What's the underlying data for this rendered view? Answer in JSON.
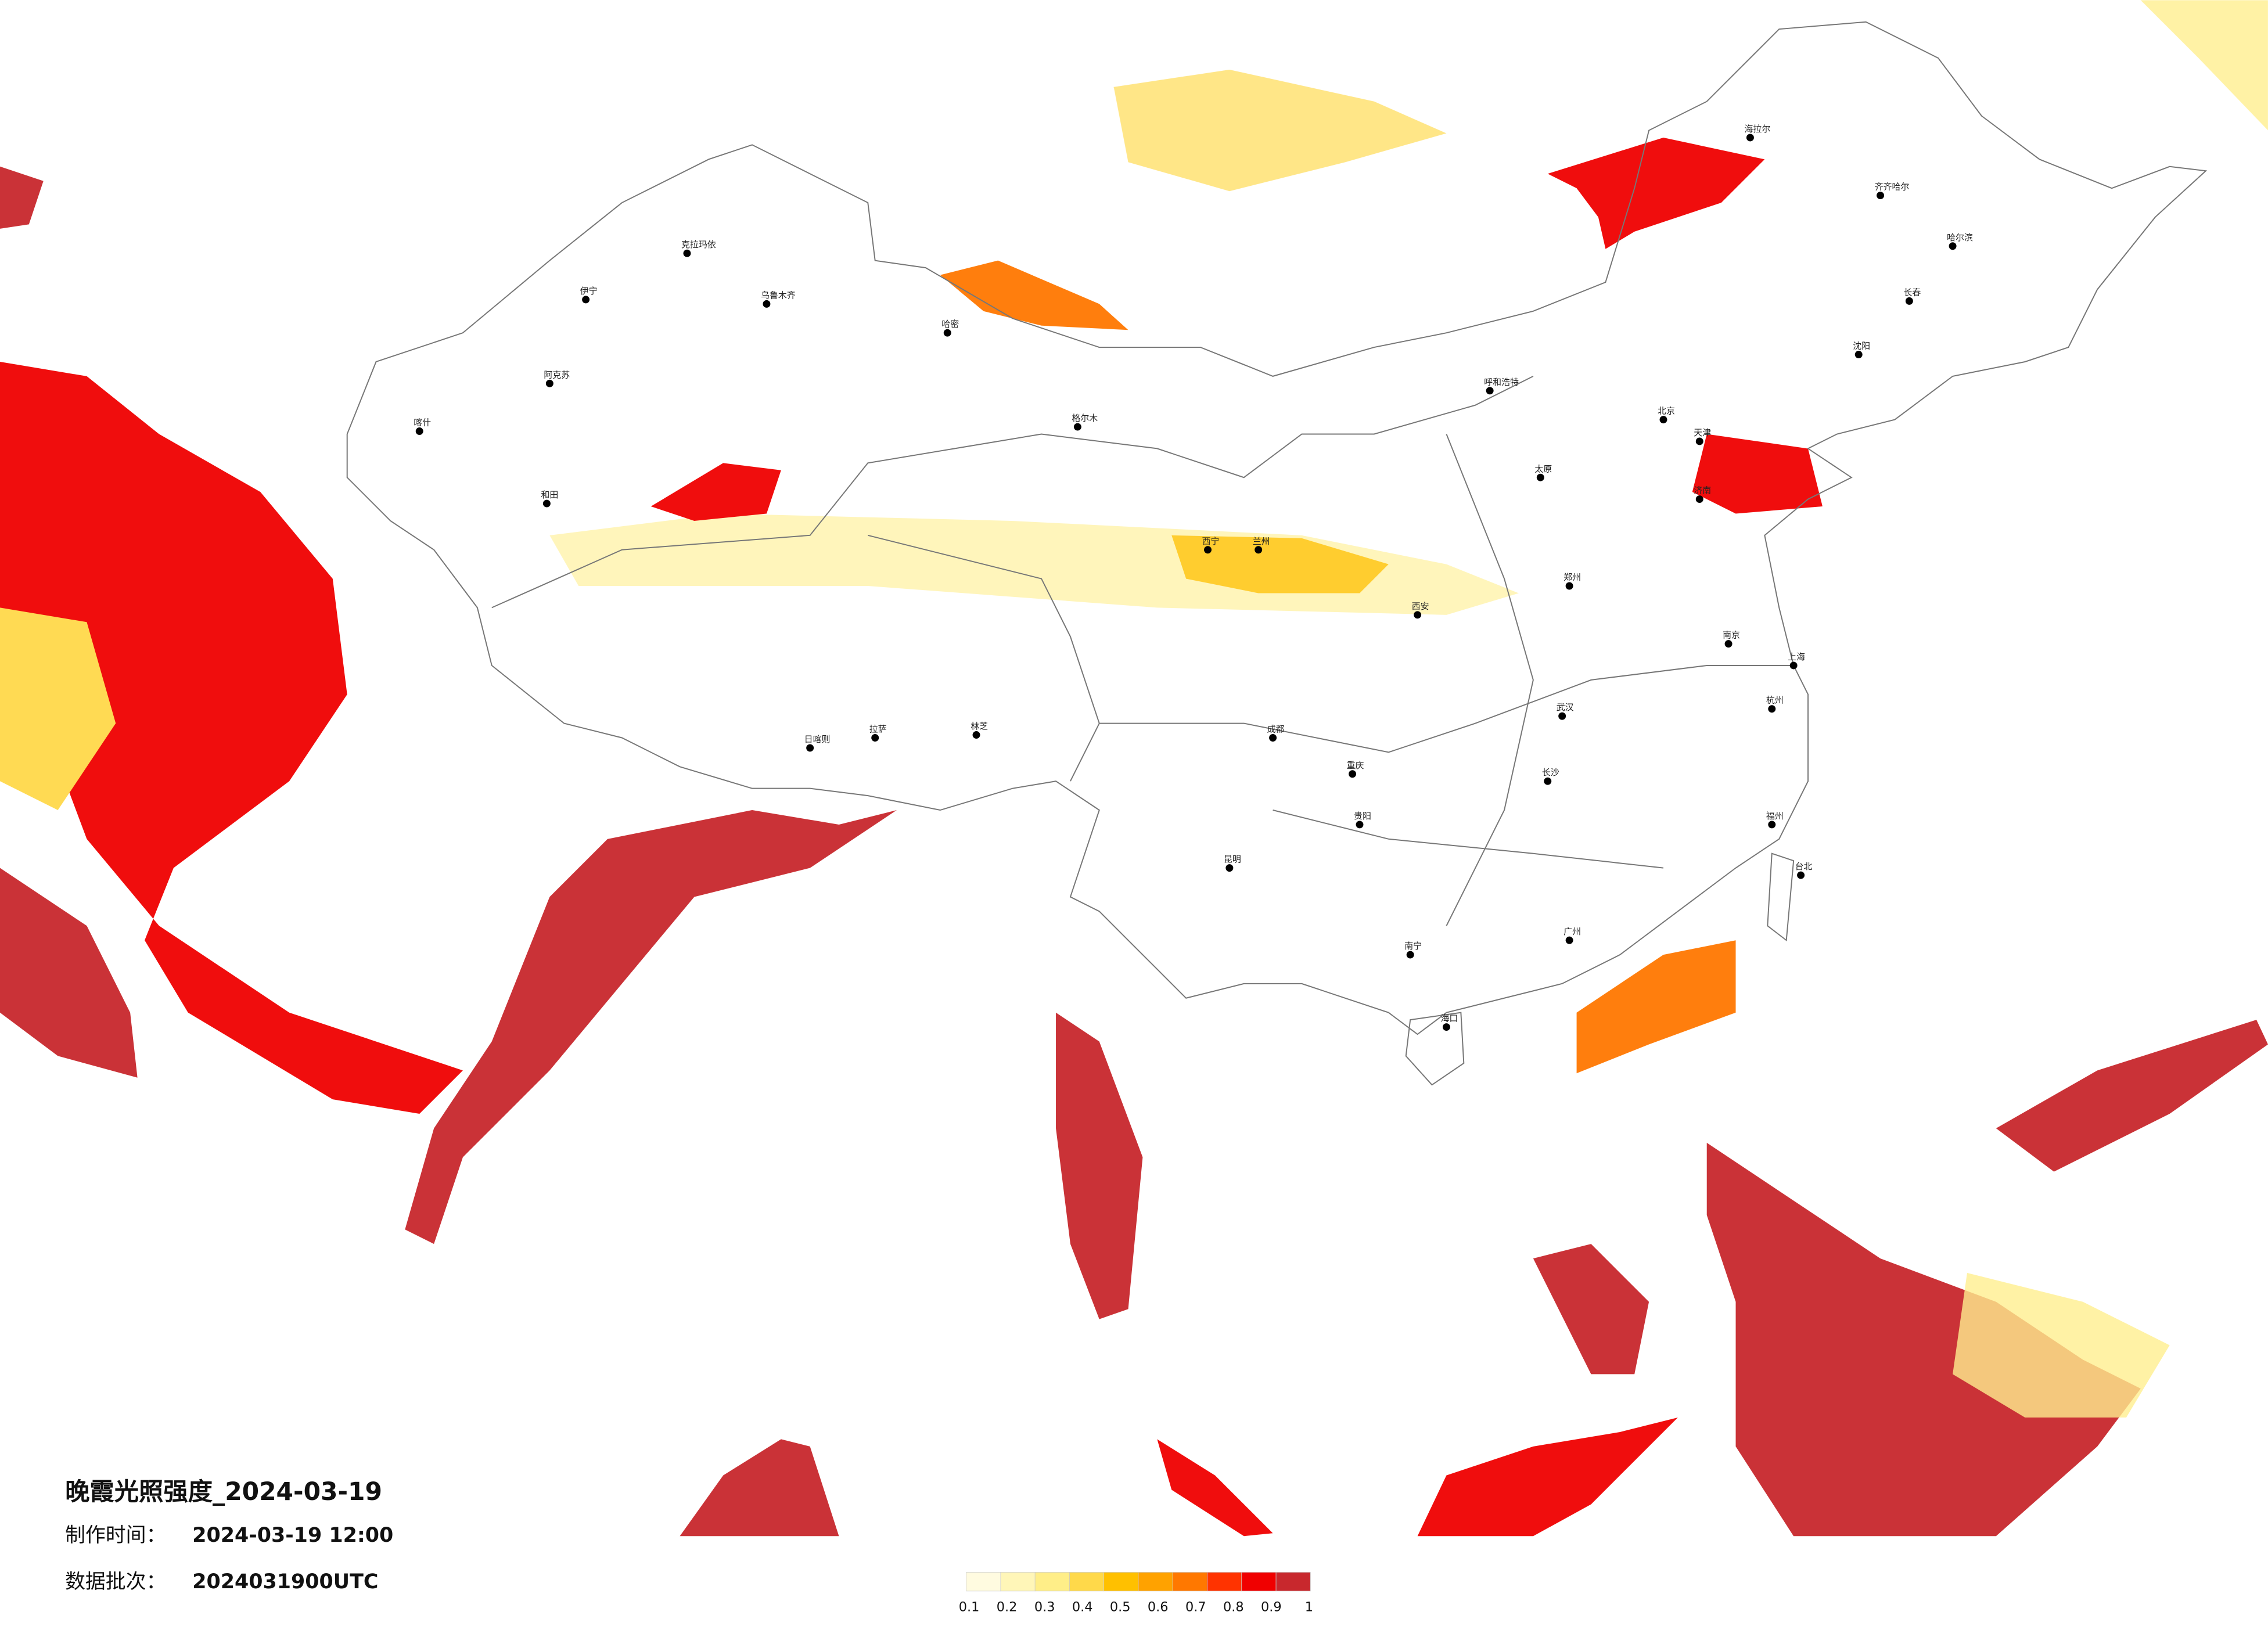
{
  "title": "晚霞光照强度_2024-03-19",
  "made_label": "制作时间：",
  "made_time": "2024-03-19 12:00",
  "batch_label": "数据批次：",
  "batch": "2024031900UTC",
  "legend": {
    "colors": [
      "#fffbe0",
      "#fff6b8",
      "#ffee88",
      "#ffd94a",
      "#ffc000",
      "#ffa200",
      "#ff7800",
      "#ff3300",
      "#f00000",
      "#c8282d"
    ],
    "ticks": [
      0.1,
      0.2,
      0.3,
      0.4,
      0.5,
      0.6,
      0.7,
      0.8,
      0.9,
      1
    ]
  },
  "cities": [
    "喀什",
    "和田",
    "阿克苏",
    "伊宁",
    "克拉玛依",
    "乌鲁木齐",
    "哈密",
    "拉萨",
    "日喀则",
    "林芝",
    "格尔木",
    "西宁",
    "兰州",
    "成都",
    "昆明",
    "贵阳",
    "重庆",
    "西安",
    "北京",
    "天津",
    "上海",
    "武汉",
    "长沙",
    "广州",
    "南宁",
    "海口",
    "哈尔滨",
    "长春",
    "沈阳",
    "呼和浩特",
    "太原",
    "郑州",
    "济南",
    "南京",
    "杭州",
    "福州",
    "台北",
    "海拉尔",
    "齐齐哈尔"
  ]
}
